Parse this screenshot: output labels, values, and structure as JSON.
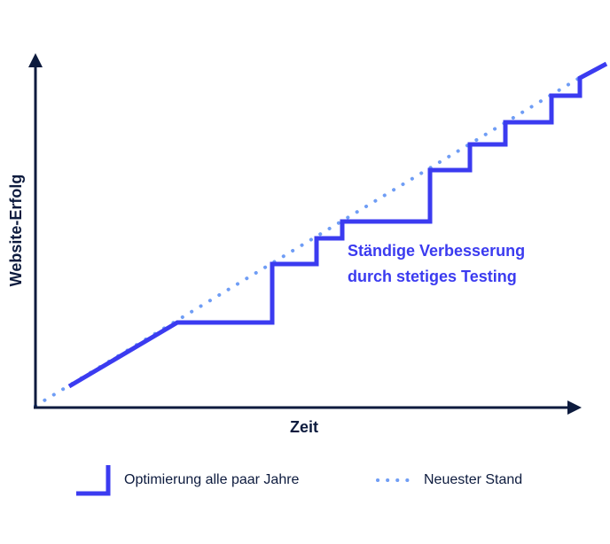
{
  "diagram": {
    "y_axis_label": "Website-Erfolg",
    "x_axis_label": "Zeit",
    "annotation_line1": "Ständige Verbesserung",
    "annotation_line2": "durch stetiges Testing",
    "colors": {
      "axis": "#0d1b3e",
      "step_line": "#3b3bf0",
      "dotted_line": "#6f9df5",
      "annotation": "#3b3bf0"
    },
    "legend": {
      "step_label": "Optimierung alle paar Jahre",
      "dotted_label": "Neuester Stand"
    }
  }
}
